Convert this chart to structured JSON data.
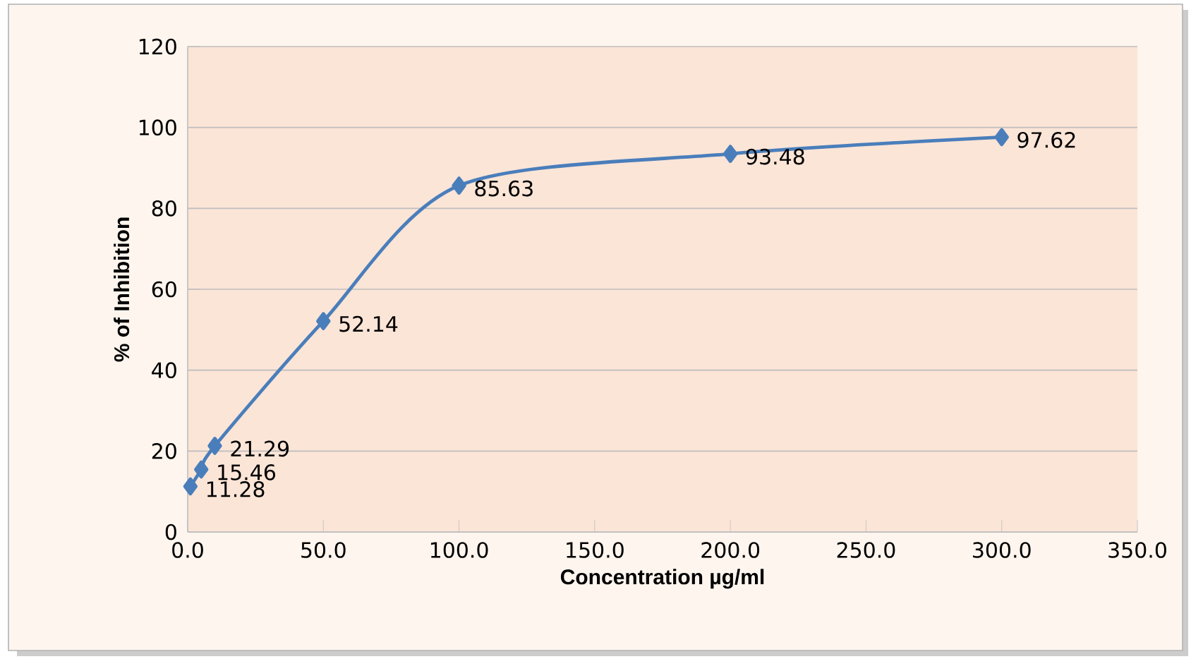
{
  "chart_data": {
    "type": "line",
    "xlabel": "Concentration µg/ml",
    "ylabel": "% of Inhibition",
    "x": [
      1,
      5,
      10,
      50,
      100,
      200,
      300
    ],
    "values": [
      11.28,
      15.46,
      21.29,
      52.14,
      85.63,
      93.48,
      97.62
    ],
    "value_labels": [
      "11.28",
      "15.46",
      "21.29",
      "52.14",
      "85.63",
      "93.48",
      "97.62"
    ],
    "color": "#4a7ebb",
    "marker": "diamond",
    "line_style": "solid",
    "grid": "y",
    "xlim": [
      0,
      350
    ],
    "ylim": [
      0,
      120
    ],
    "xticks": [
      {
        "value": 0,
        "label": "0.0"
      },
      {
        "value": 50,
        "label": "50.0"
      },
      {
        "value": 100,
        "label": "100.0"
      },
      {
        "value": 150,
        "label": "150.0"
      },
      {
        "value": 200,
        "label": "200.0"
      },
      {
        "value": 250,
        "label": "250.0"
      },
      {
        "value": 300,
        "label": "300.0"
      },
      {
        "value": 350,
        "label": "350.0"
      }
    ],
    "yticks": [
      0,
      20,
      40,
      60,
      80,
      100,
      120
    ]
  }
}
